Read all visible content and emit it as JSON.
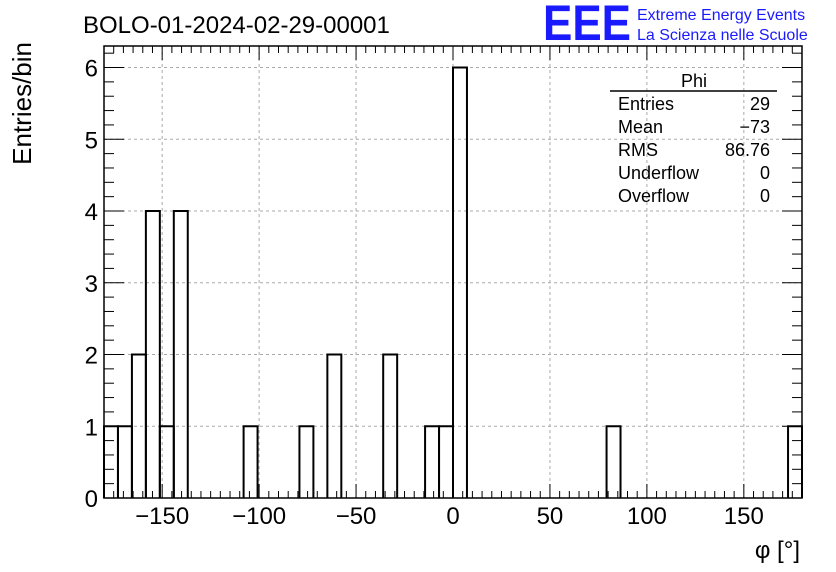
{
  "chart_data": {
    "type": "bar",
    "title": "BOLO-01-2024-02-29-00001",
    "xlabel": "φ [°]",
    "ylabel": "Entries/bin",
    "xlim": [
      -180,
      180
    ],
    "ylim": [
      0,
      6.3
    ],
    "grid": true,
    "bin_width": 7.2,
    "bins": [
      {
        "x0": -180.0,
        "value": 1
      },
      {
        "x0": -172.8,
        "value": 1
      },
      {
        "x0": -165.6,
        "value": 2
      },
      {
        "x0": -158.4,
        "value": 4
      },
      {
        "x0": -151.2,
        "value": 1
      },
      {
        "x0": -144.0,
        "value": 4
      },
      {
        "x0": -108.0,
        "value": 1
      },
      {
        "x0": -79.2,
        "value": 1
      },
      {
        "x0": -64.8,
        "value": 2
      },
      {
        "x0": -36.0,
        "value": 2
      },
      {
        "x0": -14.4,
        "value": 1
      },
      {
        "x0": -7.2,
        "value": 1
      },
      {
        "x0": 0.0,
        "value": 6
      },
      {
        "x0": 79.2,
        "value": 1
      },
      {
        "x0": 172.8,
        "value": 1
      }
    ],
    "x_ticks": [
      -150,
      -100,
      -50,
      0,
      50,
      100,
      150
    ],
    "x_tick_labels": [
      "−150",
      "−100",
      "−50",
      "0",
      "50",
      "100",
      "150"
    ],
    "y_ticks": [
      0,
      1,
      2,
      3,
      4,
      5,
      6
    ],
    "y_tick_labels": [
      "0",
      "1",
      "2",
      "3",
      "4",
      "5",
      "6"
    ],
    "stats_box": {
      "title": "Phi",
      "rows": [
        {
          "label": "Entries",
          "value": "29"
        },
        {
          "label": "Mean",
          "value": "−73"
        },
        {
          "label": "RMS",
          "value": "86.76"
        },
        {
          "label": "Underflow",
          "value": "0"
        },
        {
          "label": "Overflow",
          "value": "0"
        }
      ]
    }
  },
  "logo": {
    "mark": "EEE",
    "line1": "Extreme Energy Events",
    "line2": "La Scienza nelle Scuole",
    "color": "#1a1aff"
  }
}
